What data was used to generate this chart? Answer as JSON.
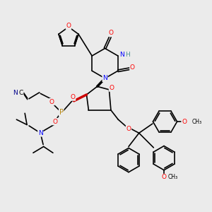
{
  "bg_color": "#ebebeb",
  "atom_colors": {
    "C": "#000000",
    "N": "#0000ff",
    "O": "#ff0000",
    "P": "#b8860b",
    "H": "#4a9090",
    "CN_label": "#00008b"
  },
  "line_color": "#000000",
  "line_width": 1.2,
  "figsize": [
    3.0,
    3.0
  ],
  "dpi": 100,
  "xlim": [
    0,
    10
  ],
  "ylim": [
    0,
    10
  ]
}
